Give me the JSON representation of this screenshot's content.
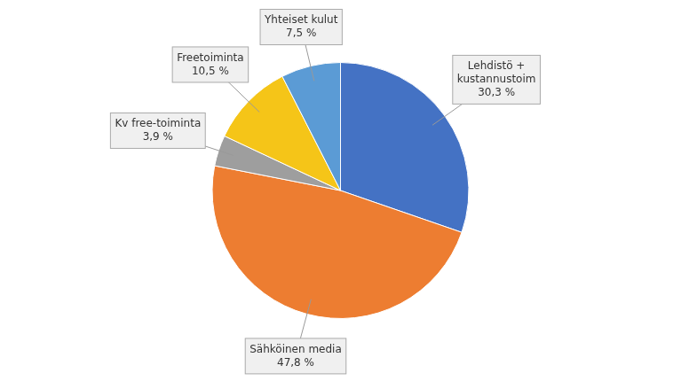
{
  "chart_data": {
    "type": "pie",
    "categories": [
      "Lehdistö +\nkustannustoim",
      "Sähköinen media",
      "Kv free-toiminta",
      "Freetoiminta",
      "Yhteiset kulut"
    ],
    "values": [
      30.3,
      47.8,
      3.9,
      10.5,
      7.5
    ],
    "value_labels": [
      "30,3 %",
      "47,8 %",
      "3,9 %",
      "10,5 %",
      "7,5 %"
    ],
    "colors": [
      "#4472C4",
      "#ED7D31",
      "#9E9E9E",
      "#F5C518",
      "#5B9BD5"
    ],
    "data_labels": true
  }
}
